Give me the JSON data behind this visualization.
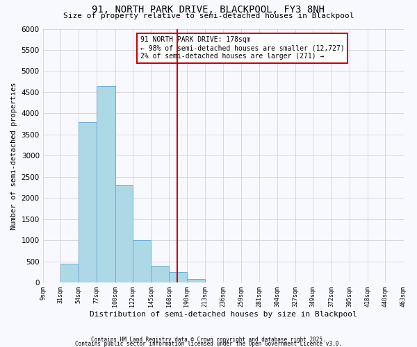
{
  "title": "91, NORTH PARK DRIVE, BLACKPOOL, FY3 8NH",
  "subtitle": "Size of property relative to semi-detached houses in Blackpool",
  "xlabel": "Distribution of semi-detached houses by size in Blackpool",
  "ylabel": "Number of semi-detached properties",
  "bin_labels": [
    "9sqm",
    "31sqm",
    "54sqm",
    "77sqm",
    "100sqm",
    "122sqm",
    "145sqm",
    "168sqm",
    "190sqm",
    "213sqm",
    "236sqm",
    "259sqm",
    "281sqm",
    "304sqm",
    "327sqm",
    "349sqm",
    "372sqm",
    "395sqm",
    "418sqm",
    "440sqm",
    "463sqm"
  ],
  "bar_heights": [
    0,
    450,
    3800,
    4650,
    2300,
    1000,
    400,
    250,
    80,
    0,
    0,
    0,
    0,
    0,
    0,
    0,
    0,
    0,
    0,
    0
  ],
  "bar_color": "#add8e6",
  "bar_edge_color": "#6baed6",
  "vline_x": 178,
  "vline_color": "#cc0000",
  "annotation_line1": "91 NORTH PARK DRIVE: 178sqm",
  "annotation_line2": "← 98% of semi-detached houses are smaller (12,727)",
  "annotation_line3": "2% of semi-detached houses are larger (271) →",
  "annotation_box_color": "#cc0000",
  "ylim": [
    0,
    6000
  ],
  "yticks": [
    0,
    500,
    1000,
    1500,
    2000,
    2500,
    3000,
    3500,
    4000,
    4500,
    5000,
    5500,
    6000
  ],
  "bin_edges_sqm": [
    9,
    31,
    54,
    77,
    100,
    122,
    145,
    168,
    190,
    213,
    236,
    259,
    281,
    304,
    327,
    349,
    372,
    395,
    418,
    440,
    463
  ],
  "footnote1": "Contains HM Land Registry data © Crown copyright and database right 2025.",
  "footnote2": "Contains public sector information licensed under the Open Government Licence v3.0.",
  "background_color": "#f8f8ff",
  "grid_color": "#cccccc",
  "title_fontsize": 10,
  "subtitle_fontsize": 8,
  "ylabel_fontsize": 7.5,
  "xlabel_fontsize": 8,
  "ytick_fontsize": 7.5,
  "xtick_fontsize": 6,
  "annotation_fontsize": 7,
  "footnote_fontsize": 5.5
}
